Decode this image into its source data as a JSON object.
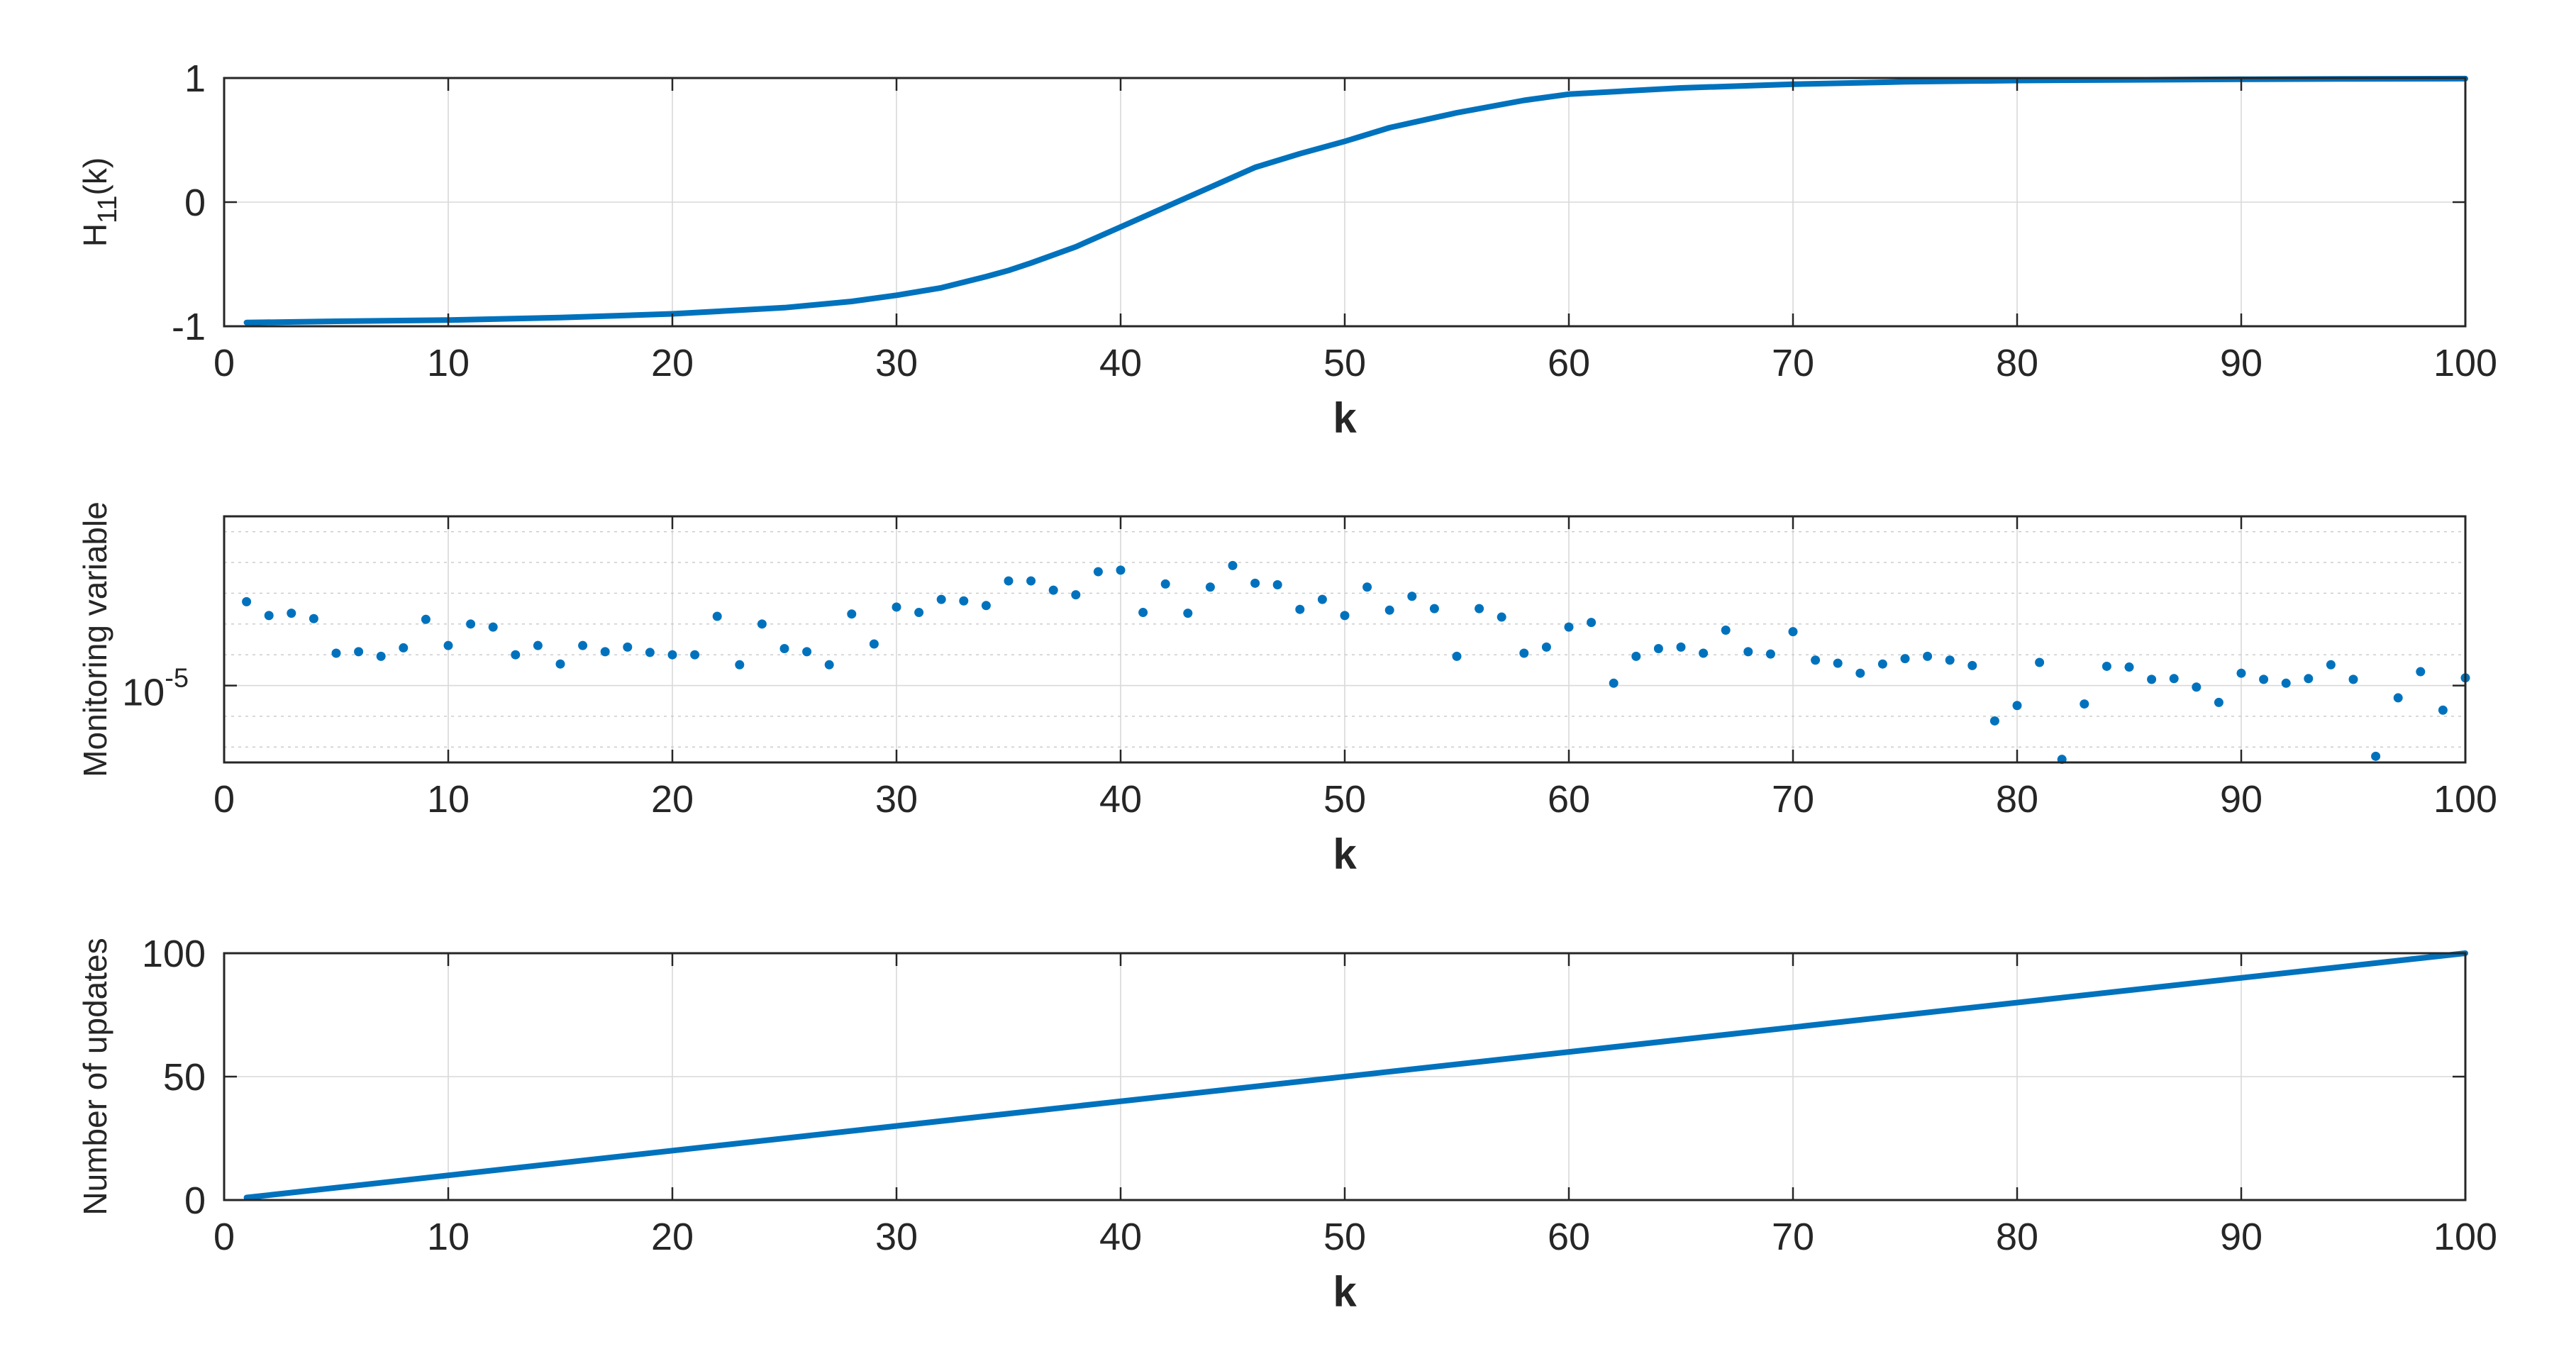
{
  "colors": {
    "series": "#0072BD",
    "axes": "#262626",
    "background": "#ffffff"
  },
  "chart_data": [
    {
      "type": "line",
      "title": "",
      "xlabel": "k",
      "ylabel": "H_11(k)",
      "ylabel_parts": {
        "base": "H",
        "sub": "11",
        "rest": "(k)"
      },
      "xlim": [
        0,
        100
      ],
      "ylim": [
        -1,
        1
      ],
      "xticks": [
        0,
        10,
        20,
        30,
        40,
        50,
        60,
        70,
        80,
        90,
        100
      ],
      "yticks": [
        -1,
        0,
        1
      ],
      "ytick_labels": [
        "-1",
        "0",
        "1"
      ],
      "grid": true,
      "yscale": "linear",
      "series": [
        {
          "x": [
            1,
            5,
            10,
            15,
            20,
            25,
            28,
            30,
            32,
            34,
            35,
            36,
            38,
            40,
            41,
            42,
            44,
            45,
            46,
            48,
            50,
            52,
            55,
            58,
            60,
            65,
            70,
            75,
            80,
            85,
            90,
            95,
            100
          ],
          "values": [
            -0.97,
            -0.96,
            -0.95,
            -0.93,
            -0.9,
            -0.85,
            -0.8,
            -0.75,
            -0.69,
            -0.6,
            -0.55,
            -0.49,
            -0.36,
            -0.2,
            -0.12,
            -0.04,
            0.12,
            0.2,
            0.28,
            0.39,
            0.49,
            0.6,
            0.72,
            0.82,
            0.87,
            0.92,
            0.95,
            0.97,
            0.98,
            0.985,
            0.99,
            0.993,
            0.995
          ]
        }
      ]
    },
    {
      "type": "scatter",
      "title": "",
      "xlabel": "k",
      "ylabel": "Monitoring variable",
      "xlim": [
        0,
        100
      ],
      "ylim": [
        5e-06,
        2.1e-05
      ],
      "xticks": [
        0,
        10,
        20,
        30,
        40,
        50,
        60,
        70,
        80,
        90,
        100
      ],
      "yticks": [
        1e-05
      ],
      "ytick_labels": [
        "10-5"
      ],
      "ytick_label_parts": {
        "base": "10",
        "exp": "-5"
      },
      "minor_gridlines": [
        6e-06,
        8e-06,
        1.2e-05,
        1.4e-05,
        1.6e-05,
        1.8e-05,
        2e-05
      ],
      "grid": true,
      "yscale": "linear",
      "series": [
        {
          "x": [
            1,
            2,
            3,
            4,
            5,
            6,
            7,
            8,
            9,
            10,
            11,
            12,
            13,
            14,
            15,
            16,
            17,
            18,
            19,
            20,
            21,
            22,
            23,
            24,
            25,
            26,
            27,
            28,
            29,
            30,
            31,
            32,
            33,
            34,
            35,
            36,
            37,
            38,
            39,
            40,
            41,
            42,
            43,
            44,
            45,
            46,
            47,
            48,
            49,
            50,
            51,
            52,
            53,
            54,
            55,
            56,
            57,
            58,
            59,
            60,
            61,
            62,
            63,
            64,
            65,
            66,
            67,
            68,
            69,
            70,
            71,
            72,
            73,
            74,
            75,
            76,
            77,
            78,
            79,
            80,
            81,
            82,
            83,
            84,
            85,
            86,
            87,
            88,
            89,
            90,
            91,
            92,
            93,
            94,
            95,
            96,
            97,
            98,
            99,
            100
          ],
          "values": [
            1.545e-05,
            1.455e-05,
            1.47e-05,
            1.435e-05,
            1.21e-05,
            1.22e-05,
            1.19e-05,
            1.245e-05,
            1.43e-05,
            1.26e-05,
            1.4e-05,
            1.38e-05,
            1.2e-05,
            1.26e-05,
            1.14e-05,
            1.26e-05,
            1.22e-05,
            1.25e-05,
            1.215e-05,
            1.2e-05,
            1.2e-05,
            1.45e-05,
            1.135e-05,
            1.4e-05,
            1.24e-05,
            1.22e-05,
            1.135e-05,
            1.465e-05,
            1.27e-05,
            1.51e-05,
            1.475e-05,
            1.56e-05,
            1.55e-05,
            1.52e-05,
            1.68e-05,
            1.68e-05,
            1.62e-05,
            1.59e-05,
            1.74e-05,
            1.75e-05,
            1.475e-05,
            1.66e-05,
            1.47e-05,
            1.64e-05,
            1.78e-05,
            1.665e-05,
            1.655e-05,
            1.495e-05,
            1.56e-05,
            1.455e-05,
            1.64e-05,
            1.49e-05,
            1.58e-05,
            1.5e-05,
            1.19e-05,
            1.5e-05,
            1.445e-05,
            1.21e-05,
            1.25e-05,
            1.38e-05,
            1.41e-05,
            1.015e-05,
            1.19e-05,
            1.24e-05,
            1.25e-05,
            1.21e-05,
            1.36e-05,
            1.22e-05,
            1.205e-05,
            1.35e-05,
            1.165e-05,
            1.145e-05,
            1.08e-05,
            1.14e-05,
            1.175e-05,
            1.19e-05,
            1.165e-05,
            1.13e-05,
            7.7e-06,
            8.7e-06,
            1.15e-05,
            5.2e-06,
            8.8e-06,
            1.125e-05,
            1.12e-05,
            1.04e-05,
            1.045e-05,
            9.9e-06,
            8.9e-06,
            1.08e-05,
            1.04e-05,
            1.015e-05,
            1.045e-05,
            1.135e-05,
            1.04e-05,
            5.4e-06,
            9.2e-06,
            1.09e-05,
            8.4e-06,
            1.05e-05
          ]
        }
      ]
    },
    {
      "type": "line",
      "title": "",
      "xlabel": "k",
      "ylabel": "Number of updates",
      "xlim": [
        0,
        100
      ],
      "ylim": [
        0,
        100
      ],
      "xticks": [
        0,
        10,
        20,
        30,
        40,
        50,
        60,
        70,
        80,
        90,
        100
      ],
      "yticks": [
        0,
        50,
        100
      ],
      "ytick_labels": [
        "0",
        "50",
        "100"
      ],
      "grid": true,
      "yscale": "linear",
      "series": [
        {
          "x": [
            1,
            100
          ],
          "values": [
            1,
            100
          ]
        }
      ]
    }
  ]
}
